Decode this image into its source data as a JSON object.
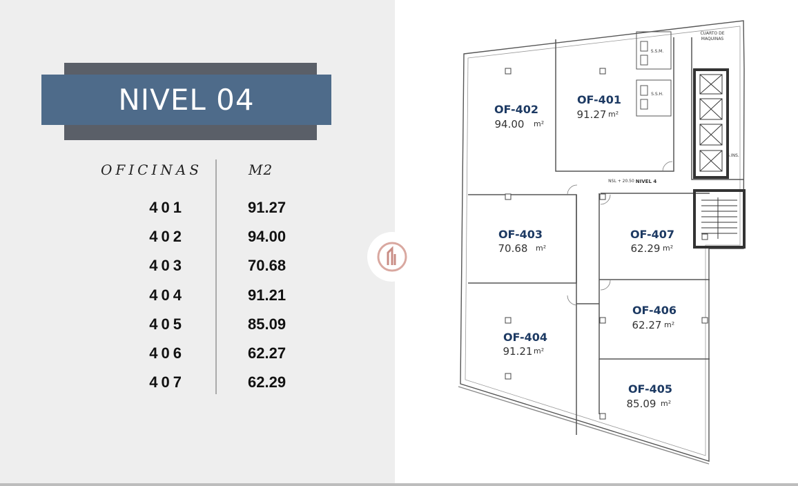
{
  "title": "NIVEL 04",
  "table": {
    "col_offices": "OFICINAS",
    "col_area": "M2",
    "rows": [
      {
        "office": "401",
        "area": "91.27"
      },
      {
        "office": "402",
        "area": "94.00"
      },
      {
        "office": "403",
        "area": "70.68"
      },
      {
        "office": "404",
        "area": "91.21"
      },
      {
        "office": "405",
        "area": "85.09"
      },
      {
        "office": "406",
        "area": "62.27"
      },
      {
        "office": "407",
        "area": "62.29"
      }
    ]
  },
  "plan": {
    "rooms": [
      {
        "code": "OF-402",
        "area": "94.00",
        "unit": "m²"
      },
      {
        "code": "OF-401",
        "area": "91.27",
        "unit": "m²"
      },
      {
        "code": "OF-403",
        "area": "70.68",
        "unit": "m²"
      },
      {
        "code": "OF-407",
        "area": "62.29",
        "unit": "m²"
      },
      {
        "code": "OF-406",
        "area": "62.27",
        "unit": "m²"
      },
      {
        "code": "OF-404",
        "area": "91.21",
        "unit": "m²"
      },
      {
        "code": "OF-405",
        "area": "85.09",
        "unit": "m²"
      }
    ],
    "labels": {
      "machine_room_1": "CUARTO DE",
      "machine_room_2": "MAQUINAS",
      "ssm": "S.S.M.",
      "ssh": "S.S.H.",
      "level_ref": "NSL + 20.50",
      "level_name": "NIVEL 4",
      "small_label": "S.INS."
    }
  },
  "colors": {
    "banner": "#4e6b8a",
    "banner_back": "#5a5f68",
    "room_code": "#1d3a63"
  }
}
